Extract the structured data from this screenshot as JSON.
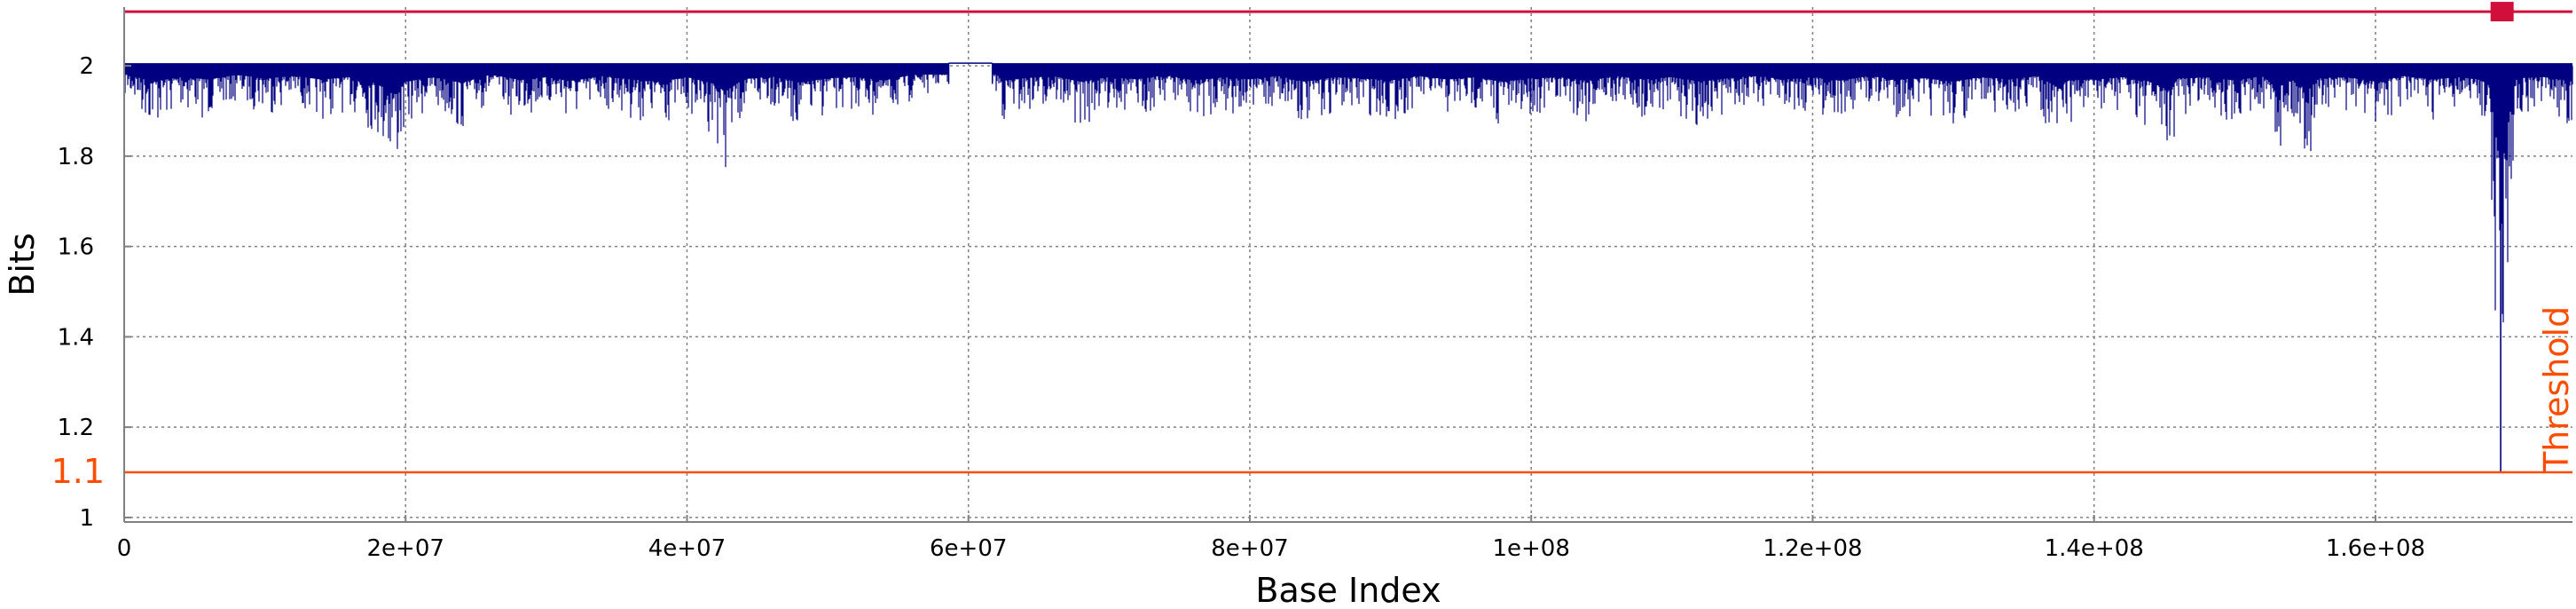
{
  "chart_data": {
    "type": "line",
    "title": "",
    "xlabel": "Base Index",
    "ylabel": "Bits",
    "xlim": [
      0,
      174000000
    ],
    "ylim": [
      0.99,
      2.13
    ],
    "xticks": [
      {
        "value": 0,
        "label": "0"
      },
      {
        "value": 20000000,
        "label": "2e+07"
      },
      {
        "value": 40000000,
        "label": "4e+07"
      },
      {
        "value": 60000000,
        "label": "6e+07"
      },
      {
        "value": 80000000,
        "label": "8e+07"
      },
      {
        "value": 100000000,
        "label": "1e+08"
      },
      {
        "value": 120000000,
        "label": "1.2e+08"
      },
      {
        "value": 140000000,
        "label": "1.4e+08"
      },
      {
        "value": 160000000,
        "label": "1.6e+08"
      }
    ],
    "yticks": [
      {
        "value": 1,
        "label": "1"
      },
      {
        "value": 1.2,
        "label": "1.2"
      },
      {
        "value": 1.4,
        "label": "1.4"
      },
      {
        "value": 1.6,
        "label": "1.6"
      },
      {
        "value": 1.8,
        "label": "1.8"
      },
      {
        "value": 2,
        "label": "2"
      }
    ],
    "grid": true,
    "threshold": {
      "value": 1.1,
      "label": "1.1",
      "text": "Threshold",
      "color": "#ff4d00"
    },
    "top_line": {
      "value": 2.12,
      "color": "#d0103a"
    },
    "marker": {
      "x": 169000000,
      "y": 2.12,
      "color": "#d0103a"
    },
    "series": [
      {
        "color": "#000080",
        "baseline": 2.0,
        "dip_lows": [
          [
            0,
            1.93
          ],
          [
            2000000,
            1.86
          ],
          [
            4000000,
            1.9
          ],
          [
            6000000,
            1.88
          ],
          [
            8000000,
            1.92
          ],
          [
            10000000,
            1.89
          ],
          [
            12000000,
            1.91
          ],
          [
            14000000,
            1.88
          ],
          [
            16000000,
            1.9
          ],
          [
            18000000,
            1.84
          ],
          [
            19300000,
            1.75
          ],
          [
            20000000,
            1.86
          ],
          [
            22000000,
            1.9
          ],
          [
            24000000,
            1.85
          ],
          [
            26000000,
            1.92
          ],
          [
            28000000,
            1.88
          ],
          [
            30000000,
            1.9
          ],
          [
            32000000,
            1.87
          ],
          [
            34000000,
            1.91
          ],
          [
            36000000,
            1.88
          ],
          [
            38000000,
            1.86
          ],
          [
            40000000,
            1.9
          ],
          [
            42000000,
            1.84
          ],
          [
            42700000,
            1.77
          ],
          [
            44000000,
            1.88
          ],
          [
            46000000,
            1.91
          ],
          [
            48000000,
            1.85
          ],
          [
            50000000,
            1.89
          ],
          [
            52000000,
            1.9
          ],
          [
            54000000,
            1.87
          ],
          [
            56000000,
            1.92
          ],
          [
            58000000,
            1.95
          ],
          [
            58600000,
            1.96
          ],
          [
            61700000,
            1.96
          ],
          [
            62500000,
            1.87
          ],
          [
            64000000,
            1.89
          ],
          [
            66000000,
            1.91
          ],
          [
            68000000,
            1.86
          ],
          [
            70000000,
            1.9
          ],
          [
            72000000,
            1.88
          ],
          [
            74000000,
            1.92
          ],
          [
            76000000,
            1.87
          ],
          [
            78000000,
            1.9
          ],
          [
            80000000,
            1.88
          ],
          [
            82000000,
            1.91
          ],
          [
            84000000,
            1.86
          ],
          [
            86000000,
            1.9
          ],
          [
            88000000,
            1.89
          ],
          [
            90000000,
            1.87
          ],
          [
            92000000,
            1.91
          ],
          [
            94000000,
            1.88
          ],
          [
            96000000,
            1.9
          ],
          [
            98000000,
            1.86
          ],
          [
            100000000,
            1.89
          ],
          [
            102000000,
            1.9
          ],
          [
            104000000,
            1.87
          ],
          [
            106000000,
            1.91
          ],
          [
            108000000,
            1.88
          ],
          [
            110000000,
            1.9
          ],
          [
            112000000,
            1.86
          ],
          [
            114000000,
            1.89
          ],
          [
            116000000,
            1.91
          ],
          [
            118000000,
            1.88
          ],
          [
            120000000,
            1.9
          ],
          [
            122000000,
            1.87
          ],
          [
            124000000,
            1.91
          ],
          [
            126000000,
            1.88
          ],
          [
            128000000,
            1.89
          ],
          [
            130000000,
            1.86
          ],
          [
            132000000,
            1.9
          ],
          [
            134000000,
            1.88
          ],
          [
            136000000,
            1.91
          ],
          [
            137700000,
            1.79
          ],
          [
            138000000,
            1.87
          ],
          [
            140000000,
            1.88
          ],
          [
            142000000,
            1.9
          ],
          [
            144000000,
            1.86
          ],
          [
            145300000,
            1.78
          ],
          [
            146000000,
            1.89
          ],
          [
            148000000,
            1.9
          ],
          [
            150000000,
            1.87
          ],
          [
            152000000,
            1.91
          ],
          [
            153000000,
            1.8
          ],
          [
            154000000,
            1.88
          ],
          [
            155200000,
            1.78
          ],
          [
            156000000,
            1.89
          ],
          [
            158000000,
            1.9
          ],
          [
            160000000,
            1.86
          ],
          [
            162000000,
            1.91
          ],
          [
            164000000,
            1.88
          ],
          [
            166000000,
            1.9
          ],
          [
            168000000,
            1.87
          ],
          [
            168900000,
            1.1
          ],
          [
            170000000,
            1.89
          ],
          [
            172000000,
            1.9
          ],
          [
            174000000,
            1.86
          ]
        ],
        "gap": [
          58600000,
          61700000
        ]
      }
    ]
  }
}
